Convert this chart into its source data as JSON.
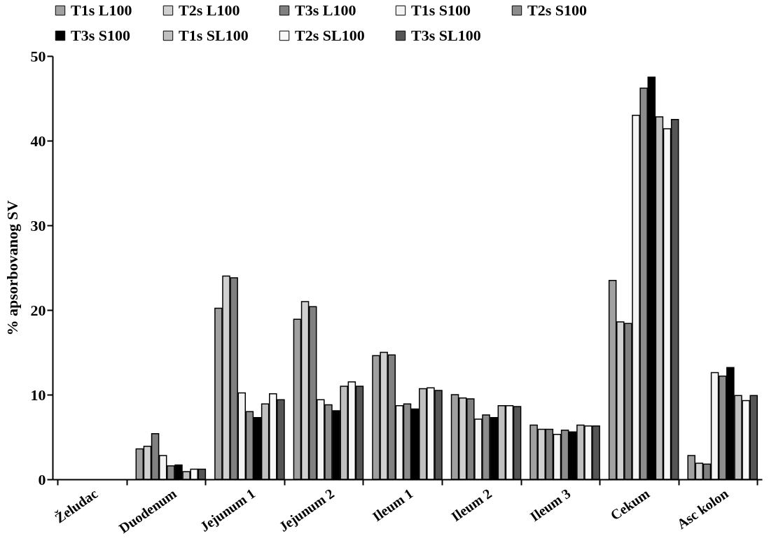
{
  "chart_data": {
    "type": "bar",
    "ylabel": "% apsorbovanog SV",
    "categories": [
      "Želudac",
      "Duodenum",
      "Jejunum 1",
      "Jejunum 2",
      "Ileum 1",
      "Ileum 2",
      "Ileum 3",
      "Cekum",
      "Asc kolon"
    ],
    "series": [
      {
        "name": "T1s L100",
        "color": "#a0a0a0",
        "values": [
          null,
          3.6,
          20.2,
          18.9,
          14.6,
          10.0,
          6.4,
          23.5,
          2.8
        ]
      },
      {
        "name": "T2s L100",
        "color": "#d0d0d0",
        "values": [
          null,
          3.9,
          24.0,
          21.0,
          15.0,
          9.6,
          5.9,
          18.6,
          1.9
        ]
      },
      {
        "name": "T3s L100",
        "color": "#808080",
        "values": [
          null,
          5.4,
          23.8,
          20.4,
          14.7,
          9.5,
          5.9,
          18.4,
          1.8
        ]
      },
      {
        "name": "T1s S100",
        "color": "#f4f4f4",
        "values": [
          null,
          2.8,
          10.2,
          9.4,
          8.7,
          7.1,
          5.3,
          43.0,
          12.6
        ]
      },
      {
        "name": "T2s S100",
        "color": "#8c8c8c",
        "values": [
          null,
          1.6,
          8.0,
          8.8,
          8.9,
          7.6,
          5.8,
          46.2,
          12.2
        ]
      },
      {
        "name": "T3s S100",
        "color": "#000000",
        "values": [
          null,
          1.7,
          7.3,
          8.1,
          8.3,
          7.3,
          5.6,
          47.5,
          13.2
        ]
      },
      {
        "name": "T1s SL100",
        "color": "#c0c0c0",
        "values": [
          null,
          0.9,
          8.9,
          11.0,
          10.7,
          8.7,
          6.4,
          42.8,
          9.9
        ]
      },
      {
        "name": "T2s SL100",
        "color": "#f8f8f8",
        "values": [
          null,
          1.2,
          10.1,
          11.5,
          10.8,
          8.7,
          6.3,
          41.4,
          9.3
        ]
      },
      {
        "name": "T3s SL100",
        "color": "#555555",
        "values": [
          null,
          1.2,
          9.4,
          11.0,
          10.5,
          8.6,
          6.3,
          42.5,
          9.9
        ]
      }
    ],
    "ylim": [
      0,
      50
    ],
    "yticks": [
      0,
      10,
      20,
      30,
      40,
      50
    ],
    "legend": "top",
    "grid": false
  }
}
